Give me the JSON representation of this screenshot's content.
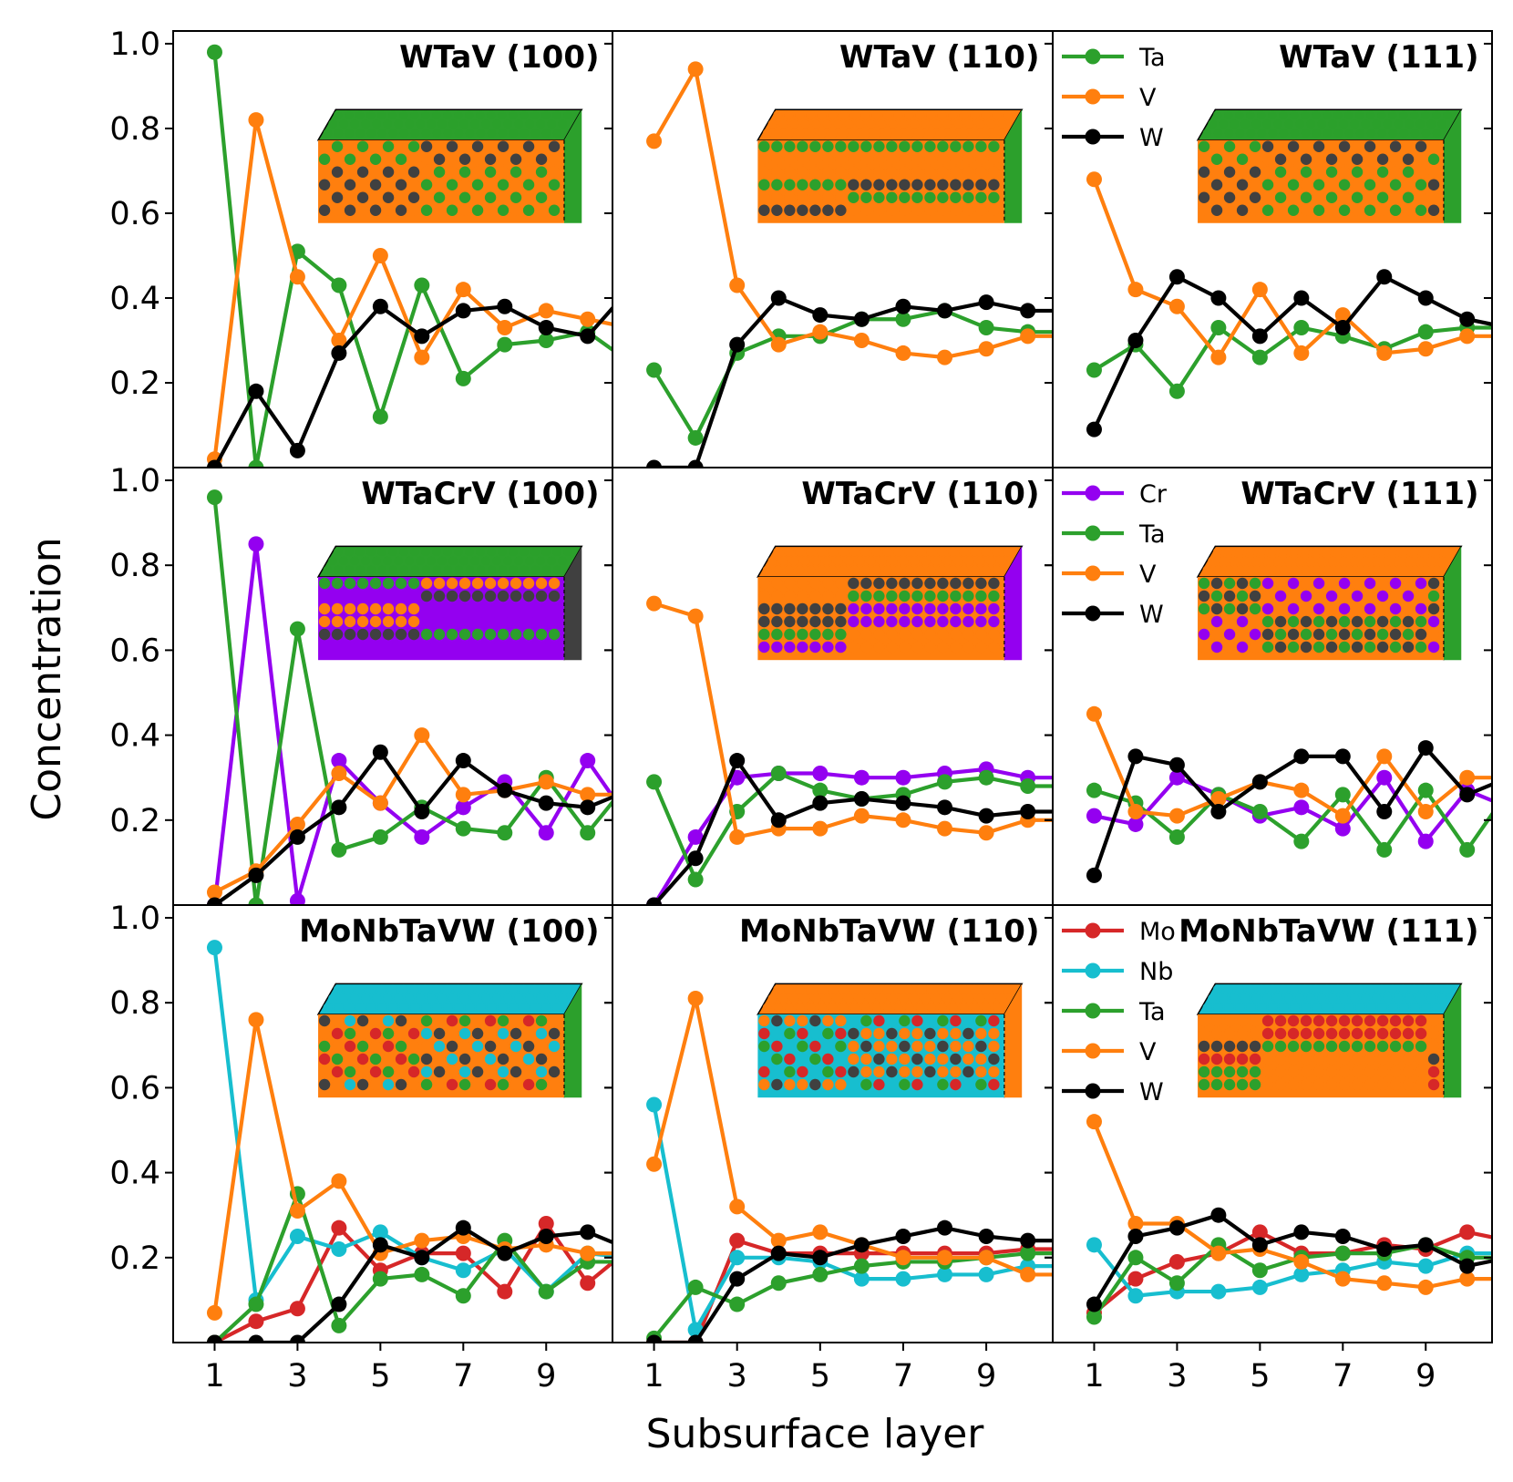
{
  "colors": {
    "Mo": "#d62728",
    "Nb": "#17becf",
    "Ta": "#2ca02c",
    "V": "#ff7f0e",
    "W": "#000000",
    "Cr": "#9400f0"
  },
  "inset_colors": {
    "WTaV (100)": {
      "top": "#2ca02c",
      "mix": [
        "#ff7f0e",
        "#2ca02c",
        "#404040",
        "#ff7f0e"
      ]
    },
    "WTaV (110)": {
      "top": "#ff7f0e",
      "mix": [
        "#ff7f0e",
        "#2ca02c",
        "#404040",
        "#ff7f0e",
        "#2ca02c"
      ]
    },
    "WTaV (111)": {
      "top": "#2ca02c",
      "mix": [
        "#ff7f0e",
        "#2ca02c",
        "#404040",
        "#ff7f0e"
      ]
    },
    "WTaCrV (100)": {
      "top": "#2ca02c",
      "mix": [
        "#9400f0",
        "#404040",
        "#ff7f0e",
        "#9400f0",
        "#2ca02c"
      ]
    },
    "WTaCrV (110)": {
      "top": "#ff7f0e",
      "mix": [
        "#ff7f0e",
        "#9400f0",
        "#2ca02c",
        "#404040",
        "#ff7f0e"
      ]
    },
    "WTaCrV (111)": {
      "top": "#ff7f0e",
      "mix": [
        "#ff7f0e",
        "#2ca02c",
        "#9400f0",
        "#404040"
      ]
    },
    "MoNbTaVW (100)": {
      "top": "#17becf",
      "mix": [
        "#ff7f0e",
        "#2ca02c",
        "#404040",
        "#d62728",
        "#17becf",
        "#ff7f0e"
      ]
    },
    "MoNbTaVW (110)": {
      "top": "#ff7f0e",
      "mix": [
        "#17becf",
        "#ff7f0e",
        "#d62728",
        "#404040",
        "#2ca02c",
        "#ff7f0e"
      ]
    },
    "MoNbTaVW (111)": {
      "top": "#17becf",
      "mix": [
        "#ff7f0e",
        "#2ca02c",
        "#d62728",
        "#404040",
        "#ff7f0e"
      ]
    }
  },
  "chart_data": {
    "type": "line",
    "xlabel": "Subsurface layer",
    "ylabel": "Concentration",
    "xlim": [
      0.0,
      10.6
    ],
    "ylim": [
      0.0,
      1.03
    ],
    "xticks": [
      "1",
      "3",
      "5",
      "7",
      "9"
    ],
    "yticks": [
      "0.2",
      "0.4",
      "0.6",
      "0.8",
      "1.0"
    ],
    "x": [
      1,
      2,
      3,
      4,
      5,
      6,
      7,
      8,
      9,
      10,
      11
    ],
    "panels": [
      {
        "title": "WTaV (100)",
        "row": 0,
        "col": 0,
        "legend": [],
        "series": [
          {
            "name": "Ta",
            "values": [
              0.98,
              0.0,
              0.51,
              0.43,
              0.12,
              0.43,
              0.21,
              0.29,
              0.3,
              0.32,
              0.25
            ]
          },
          {
            "name": "V",
            "values": [
              0.02,
              0.82,
              0.45,
              0.3,
              0.5,
              0.26,
              0.42,
              0.33,
              0.37,
              0.35,
              0.33
            ]
          },
          {
            "name": "W",
            "values": [
              0.0,
              0.18,
              0.04,
              0.27,
              0.38,
              0.31,
              0.37,
              0.38,
              0.33,
              0.31,
              0.42
            ]
          }
        ]
      },
      {
        "title": "WTaV (110)",
        "row": 0,
        "col": 1,
        "legend": [],
        "series": [
          {
            "name": "Ta",
            "values": [
              0.23,
              0.07,
              0.27,
              0.31,
              0.31,
              0.35,
              0.35,
              0.37,
              0.33,
              0.32,
              0.32
            ]
          },
          {
            "name": "V",
            "values": [
              0.77,
              0.94,
              0.43,
              0.29,
              0.32,
              0.3,
              0.27,
              0.26,
              0.28,
              0.31,
              0.31
            ]
          },
          {
            "name": "W",
            "values": [
              0.0,
              0.0,
              0.29,
              0.4,
              0.36,
              0.35,
              0.38,
              0.37,
              0.39,
              0.37,
              0.37
            ]
          }
        ]
      },
      {
        "title": "WTaV (111)",
        "row": 0,
        "col": 2,
        "legend": [
          "Ta",
          "V",
          "W"
        ],
        "series": [
          {
            "name": "Ta",
            "values": [
              0.23,
              0.29,
              0.18,
              0.33,
              0.26,
              0.33,
              0.31,
              0.28,
              0.32,
              0.33,
              0.33
            ]
          },
          {
            "name": "V",
            "values": [
              0.68,
              0.42,
              0.38,
              0.26,
              0.42,
              0.27,
              0.36,
              0.27,
              0.28,
              0.31,
              0.31
            ]
          },
          {
            "name": "W",
            "values": [
              0.09,
              0.3,
              0.45,
              0.4,
              0.31,
              0.4,
              0.33,
              0.45,
              0.4,
              0.35,
              0.33
            ]
          }
        ]
      },
      {
        "title": "WTaCrV (100)",
        "row": 1,
        "col": 0,
        "legend": [],
        "series": [
          {
            "name": "Cr",
            "values": [
              0.0,
              0.85,
              0.01,
              0.34,
              0.24,
              0.16,
              0.23,
              0.29,
              0.17,
              0.34,
              0.2
            ]
          },
          {
            "name": "Ta",
            "values": [
              0.96,
              0.0,
              0.65,
              0.13,
              0.16,
              0.23,
              0.18,
              0.17,
              0.3,
              0.17,
              0.29
            ]
          },
          {
            "name": "V",
            "values": [
              0.03,
              0.08,
              0.19,
              0.31,
              0.24,
              0.4,
              0.26,
              0.27,
              0.29,
              0.26,
              0.26
            ]
          },
          {
            "name": "W",
            "values": [
              0.0,
              0.07,
              0.16,
              0.23,
              0.36,
              0.22,
              0.34,
              0.27,
              0.24,
              0.23,
              0.27
            ]
          }
        ]
      },
      {
        "title": "WTaCrV (110)",
        "row": 1,
        "col": 1,
        "legend": [],
        "series": [
          {
            "name": "Cr",
            "values": [
              0.0,
              0.16,
              0.3,
              0.31,
              0.31,
              0.3,
              0.3,
              0.31,
              0.32,
              0.3,
              0.3
            ]
          },
          {
            "name": "Ta",
            "values": [
              0.29,
              0.06,
              0.22,
              0.31,
              0.27,
              0.25,
              0.26,
              0.29,
              0.3,
              0.28,
              0.28
            ]
          },
          {
            "name": "V",
            "values": [
              0.71,
              0.68,
              0.16,
              0.18,
              0.18,
              0.21,
              0.2,
              0.18,
              0.17,
              0.2,
              0.2
            ]
          },
          {
            "name": "W",
            "values": [
              0.0,
              0.11,
              0.34,
              0.2,
              0.24,
              0.25,
              0.24,
              0.23,
              0.21,
              0.22,
              0.22
            ]
          }
        ]
      },
      {
        "title": "WTaCrV (111)",
        "row": 1,
        "col": 2,
        "legend": [
          "Cr",
          "Ta",
          "V",
          "W"
        ],
        "series": [
          {
            "name": "Cr",
            "values": [
              0.21,
              0.19,
              0.3,
              0.26,
              0.21,
              0.23,
              0.18,
              0.3,
              0.15,
              0.27,
              0.23
            ]
          },
          {
            "name": "Ta",
            "values": [
              0.27,
              0.24,
              0.16,
              0.26,
              0.22,
              0.15,
              0.26,
              0.13,
              0.27,
              0.13,
              0.27
            ]
          },
          {
            "name": "V",
            "values": [
              0.45,
              0.22,
              0.21,
              0.25,
              0.29,
              0.27,
              0.21,
              0.35,
              0.22,
              0.3,
              0.3
            ]
          },
          {
            "name": "W",
            "values": [
              0.07,
              0.35,
              0.33,
              0.22,
              0.29,
              0.35,
              0.35,
              0.22,
              0.37,
              0.26,
              0.3
            ]
          }
        ]
      },
      {
        "title": "MoNbTaVW (100)",
        "row": 2,
        "col": 0,
        "legend": [],
        "series": [
          {
            "name": "Mo",
            "values": [
              0.0,
              0.05,
              0.08,
              0.27,
              0.17,
              0.21,
              0.21,
              0.12,
              0.28,
              0.14,
              0.22
            ]
          },
          {
            "name": "Nb",
            "values": [
              0.93,
              0.1,
              0.25,
              0.22,
              0.26,
              0.2,
              0.17,
              0.22,
              0.12,
              0.21,
              0.2
            ]
          },
          {
            "name": "Ta",
            "values": [
              0.0,
              0.09,
              0.35,
              0.04,
              0.15,
              0.16,
              0.11,
              0.24,
              0.12,
              0.19,
              0.19
            ]
          },
          {
            "name": "V",
            "values": [
              0.07,
              0.76,
              0.31,
              0.38,
              0.21,
              0.24,
              0.25,
              0.22,
              0.23,
              0.21,
              0.21
            ]
          },
          {
            "name": "W",
            "values": [
              0.0,
              0.0,
              0.0,
              0.09,
              0.23,
              0.2,
              0.27,
              0.21,
              0.25,
              0.26,
              0.22
            ]
          }
        ]
      },
      {
        "title": "MoNbTaVW (110)",
        "row": 2,
        "col": 1,
        "legend": [],
        "series": [
          {
            "name": "Mo",
            "values": [
              0.0,
              0.0,
              0.24,
              0.21,
              0.21,
              0.21,
              0.21,
              0.21,
              0.21,
              0.22,
              0.22
            ]
          },
          {
            "name": "Nb",
            "values": [
              0.56,
              0.03,
              0.2,
              0.2,
              0.19,
              0.15,
              0.15,
              0.16,
              0.16,
              0.18,
              0.18
            ]
          },
          {
            "name": "Ta",
            "values": [
              0.01,
              0.13,
              0.09,
              0.14,
              0.16,
              0.18,
              0.19,
              0.19,
              0.2,
              0.21,
              0.21
            ]
          },
          {
            "name": "V",
            "values": [
              0.42,
              0.81,
              0.32,
              0.24,
              0.26,
              0.23,
              0.2,
              0.2,
              0.2,
              0.16,
              0.16
            ]
          },
          {
            "name": "W",
            "values": [
              0.0,
              0.0,
              0.15,
              0.21,
              0.2,
              0.23,
              0.25,
              0.27,
              0.25,
              0.24,
              0.24
            ]
          }
        ]
      },
      {
        "title": "MoNbTaVW (111)",
        "row": 2,
        "col": 2,
        "legend": [
          "Mo",
          "Nb",
          "Ta",
          "V",
          "W"
        ],
        "series": [
          {
            "name": "Mo",
            "values": [
              0.07,
              0.15,
              0.19,
              0.21,
              0.26,
              0.21,
              0.21,
              0.23,
              0.22,
              0.26,
              0.24
            ]
          },
          {
            "name": "Nb",
            "values": [
              0.23,
              0.11,
              0.12,
              0.12,
              0.13,
              0.16,
              0.17,
              0.19,
              0.18,
              0.21,
              0.21
            ]
          },
          {
            "name": "Ta",
            "values": [
              0.06,
              0.2,
              0.14,
              0.23,
              0.17,
              0.2,
              0.21,
              0.21,
              0.23,
              0.2,
              0.2
            ]
          },
          {
            "name": "V",
            "values": [
              0.52,
              0.28,
              0.28,
              0.21,
              0.22,
              0.19,
              0.15,
              0.14,
              0.13,
              0.15,
              0.15
            ]
          },
          {
            "name": "W",
            "values": [
              0.09,
              0.25,
              0.27,
              0.3,
              0.23,
              0.26,
              0.25,
              0.22,
              0.23,
              0.18,
              0.2
            ]
          }
        ]
      }
    ]
  }
}
